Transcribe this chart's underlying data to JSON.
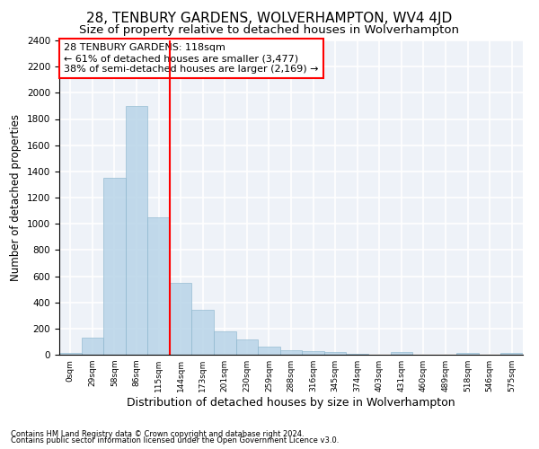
{
  "title": "28, TENBURY GARDENS, WOLVERHAMPTON, WV4 4JD",
  "subtitle": "Size of property relative to detached houses in Wolverhampton",
  "xlabel": "Distribution of detached houses by size in Wolverhampton",
  "ylabel": "Number of detached properties",
  "footer_line1": "Contains HM Land Registry data © Crown copyright and database right 2024.",
  "footer_line2": "Contains public sector information licensed under the Open Government Licence v3.0.",
  "bin_labels": [
    "0sqm",
    "29sqm",
    "58sqm",
    "86sqm",
    "115sqm",
    "144sqm",
    "173sqm",
    "201sqm",
    "230sqm",
    "259sqm",
    "288sqm",
    "316sqm",
    "345sqm",
    "374sqm",
    "403sqm",
    "431sqm",
    "460sqm",
    "489sqm",
    "518sqm",
    "546sqm",
    "575sqm"
  ],
  "bar_values": [
    15,
    130,
    1350,
    1900,
    1050,
    550,
    340,
    175,
    115,
    65,
    35,
    25,
    20,
    5,
    0,
    20,
    0,
    0,
    15,
    0,
    15
  ],
  "bar_color": "#b8d4e8",
  "bar_edgecolor": "#8ab4cc",
  "bar_alpha": 0.85,
  "vline_x": 4.5,
  "vline_color": "red",
  "annotation_text": "28 TENBURY GARDENS: 118sqm\n← 61% of detached houses are smaller (3,477)\n38% of semi-detached houses are larger (2,169) →",
  "annotation_box_color": "white",
  "annotation_box_edgecolor": "red",
  "ylim": [
    0,
    2400
  ],
  "yticks": [
    0,
    200,
    400,
    600,
    800,
    1000,
    1200,
    1400,
    1600,
    1800,
    2000,
    2200,
    2400
  ],
  "background_color": "#eef2f8",
  "grid_color": "white",
  "title_fontsize": 11,
  "subtitle_fontsize": 9.5,
  "xlabel_fontsize": 9,
  "ylabel_fontsize": 8.5,
  "annotation_fontsize": 8
}
